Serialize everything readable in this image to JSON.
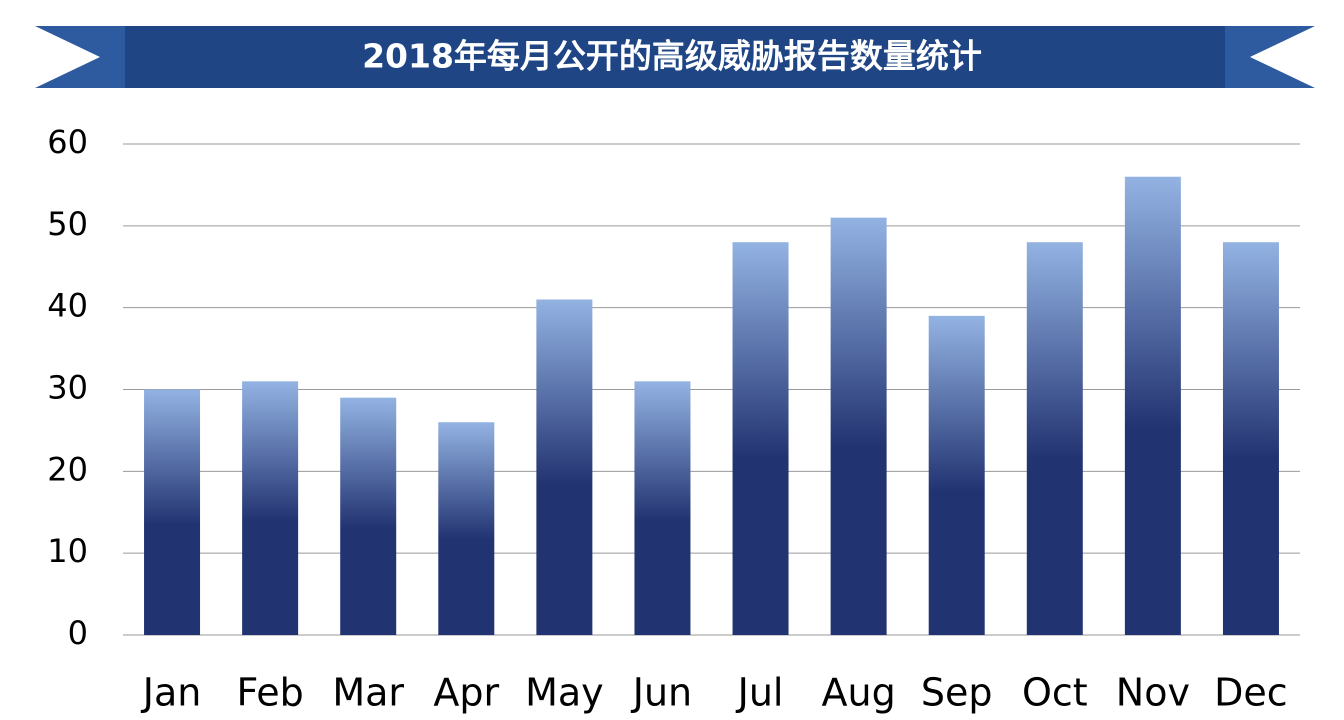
{
  "chart_data": {
    "type": "bar",
    "title": "2018年每月公开的高级威胁报告数量统计",
    "categories": [
      "Jan",
      "Feb",
      "Mar",
      "Apr",
      "May",
      "Jun",
      "Jul",
      "Aug",
      "Sep",
      "Oct",
      "Nov",
      "Dec"
    ],
    "values": [
      30,
      31,
      29,
      26,
      41,
      31,
      48,
      51,
      39,
      48,
      56,
      48
    ],
    "color": "#223371",
    "ylim": [
      0,
      60
    ],
    "yticks": [
      0,
      10,
      20,
      30,
      40,
      50,
      60
    ],
    "grid": true
  }
}
